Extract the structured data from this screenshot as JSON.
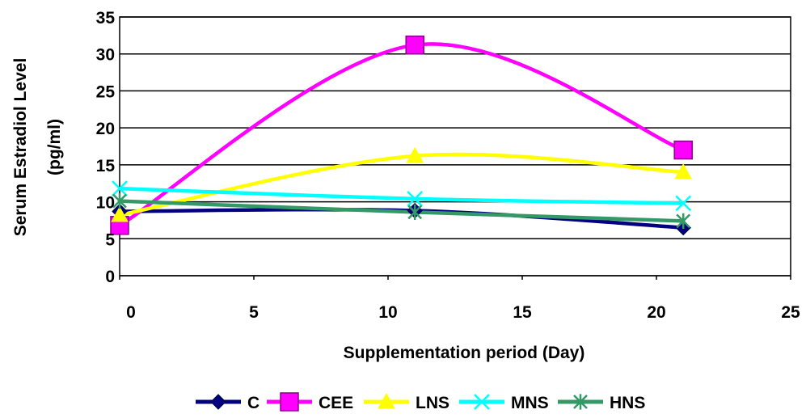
{
  "chart_data": {
    "type": "line",
    "xlabel": "Supplementation period (Day)",
    "ylabel_lines": [
      "Serum Estradiol Level",
      "(pg/ml)"
    ],
    "xlim": [
      0,
      25
    ],
    "ylim": [
      0,
      35
    ],
    "xticks": [
      0,
      5,
      10,
      15,
      20,
      25
    ],
    "yticks": [
      0,
      5,
      10,
      15,
      20,
      25,
      30,
      35
    ],
    "grid": "horizontal",
    "legend": "bottom",
    "x": [
      0,
      11,
      21
    ],
    "series": [
      {
        "name": "C",
        "values": [
          8.7,
          8.8,
          6.5
        ],
        "color": "#000080",
        "marker": "diamond"
      },
      {
        "name": "CEE",
        "values": [
          6.8,
          31.2,
          17.0
        ],
        "color": "#ff00ff",
        "marker": "square"
      },
      {
        "name": "LNS",
        "values": [
          8.2,
          16.2,
          14.0
        ],
        "color": "#ffff00",
        "marker": "triangle"
      },
      {
        "name": "MNS",
        "values": [
          11.8,
          10.4,
          9.8
        ],
        "color": "#00ffff",
        "marker": "x"
      },
      {
        "name": "HNS",
        "values": [
          10.1,
          8.6,
          7.4
        ],
        "color": "#339966",
        "marker": "star"
      }
    ]
  }
}
